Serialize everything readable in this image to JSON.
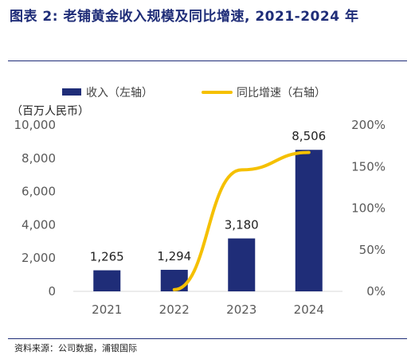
{
  "header": {
    "title": "图表 2: 老铺黄金收入规模及同比增速, 2021-2024 年"
  },
  "footer": {
    "source": "资料来源：公司数据，浦银国际"
  },
  "colors": {
    "title": "#1f2d78",
    "bar": "#1f2d78",
    "line": "#f5c000",
    "axis_text": "#595959",
    "rule": "#1f2d78"
  },
  "chart_data": {
    "type": "bar",
    "title": "",
    "unit_label": "（百万人民币）",
    "categories": [
      "2021",
      "2022",
      "2023",
      "2024"
    ],
    "series": [
      {
        "name": "收入（左轴）",
        "type": "bar",
        "axis": "left",
        "values": [
          1265,
          1294,
          3180,
          8506
        ],
        "labels": [
          "1,265",
          "1,294",
          "3,180",
          "8,506"
        ]
      },
      {
        "name": "同比增速（右轴）",
        "type": "line",
        "axis": "right",
        "smooth": true,
        "values": [
          null,
          0.02,
          1.46,
          1.67
        ]
      }
    ],
    "y_left": {
      "range": [
        0,
        10000
      ],
      "ticks": [
        0,
        2000,
        4000,
        6000,
        8000,
        10000
      ],
      "tick_labels": [
        "0",
        "2,000",
        "4,000",
        "6,000",
        "8,000",
        "10,000"
      ]
    },
    "y_right": {
      "range": [
        0,
        2.0
      ],
      "ticks": [
        0,
        0.5,
        1.0,
        1.5,
        2.0
      ],
      "tick_labels": [
        "0%",
        "50%",
        "100%",
        "150%",
        "200%"
      ]
    },
    "grid": false,
    "legend": "top-left"
  }
}
